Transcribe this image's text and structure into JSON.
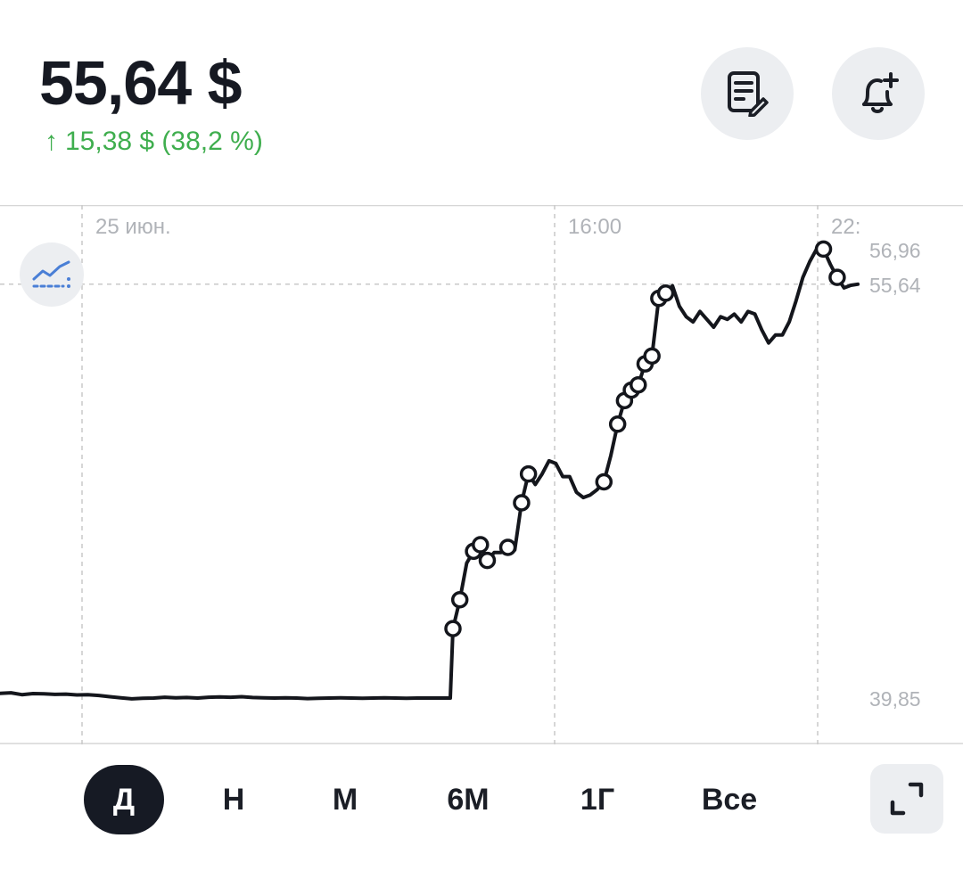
{
  "header": {
    "price": "55,64 $",
    "change_arrow": "↑",
    "change": "15,38 $ (38,2 %)"
  },
  "actions": {
    "notes_icon": "notes-edit-icon",
    "alert_icon": "bell-plus-icon",
    "indicator_icon": "indicator-chart-icon",
    "expand_icon": "expand-icon"
  },
  "colors": {
    "positive": "#3fae4e",
    "line": "#14161c",
    "active_tab_bg": "#161a24",
    "button_bg": "#eceef1",
    "grid": "#c8c8c8",
    "label": "#b0b3b8"
  },
  "periods": [
    {
      "label": "Д",
      "active": true
    },
    {
      "label": "Н",
      "active": false
    },
    {
      "label": "М",
      "active": false
    },
    {
      "label": "6М",
      "active": false
    },
    {
      "label": "1Г",
      "active": false
    },
    {
      "label": "Все",
      "active": false
    }
  ],
  "chart_data": {
    "type": "line",
    "x_tick_labels": [
      "25 июн.",
      "16:00",
      "22:"
    ],
    "y_tick_labels": [
      "56,96",
      "55,64",
      "39,85"
    ],
    "ylim": [
      39.85,
      56.96
    ],
    "current_value": 55.64,
    "grid": true,
    "series": [
      {
        "values": [
          40.03,
          40.05,
          39.98,
          40.02,
          40.01,
          39.99,
          40.0,
          39.97,
          39.98,
          39.95,
          39.9,
          39.86,
          39.82,
          39.84,
          39.85,
          39.88,
          39.86,
          39.87,
          39.85,
          39.88,
          39.89,
          39.88,
          39.9,
          39.87,
          39.86,
          39.85,
          39.86,
          39.85,
          39.83,
          39.84,
          39.85,
          39.86,
          39.85,
          39.84,
          39.85,
          39.86,
          39.85,
          39.84,
          39.85,
          39.85,
          39.85,
          39.85,
          42.5,
          43.6,
          45.0,
          45.45,
          45.7,
          45.1,
          45.4,
          45.4,
          45.6,
          45.5,
          47.3,
          48.4,
          48.0,
          48.4,
          48.9,
          48.8,
          48.3,
          48.3,
          47.7,
          47.5,
          47.6,
          47.8,
          48.1,
          49.1,
          50.3,
          51.2,
          51.6,
          51.8,
          52.6,
          52.9,
          55.1,
          55.3,
          55.58,
          54.8,
          54.4,
          54.2,
          54.6,
          54.3,
          54.0,
          54.4,
          54.3,
          54.5,
          54.2,
          54.6,
          54.5,
          53.9,
          53.4,
          53.7,
          53.7,
          54.2,
          55.0,
          55.9,
          56.5,
          56.98,
          56.98,
          56.4,
          55.9,
          55.5,
          55.6,
          55.64
        ]
      }
    ]
  }
}
